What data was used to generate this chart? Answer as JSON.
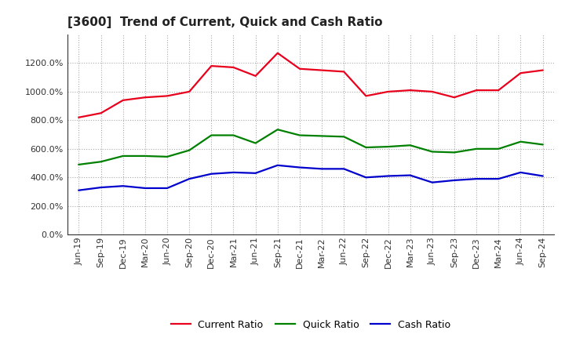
{
  "title": "[3600]  Trend of Current, Quick and Cash Ratio",
  "x_labels": [
    "Jun-19",
    "Sep-19",
    "Dec-19",
    "Mar-20",
    "Jun-20",
    "Sep-20",
    "Dec-20",
    "Mar-21",
    "Jun-21",
    "Sep-21",
    "Dec-21",
    "Mar-22",
    "Jun-22",
    "Sep-22",
    "Dec-22",
    "Mar-23",
    "Jun-23",
    "Sep-23",
    "Dec-23",
    "Mar-24",
    "Jun-24",
    "Sep-24"
  ],
  "current_ratio": [
    820,
    850,
    940,
    960,
    970,
    1000,
    1180,
    1170,
    1110,
    1270,
    1160,
    1150,
    1140,
    970,
    1000,
    1010,
    1000,
    960,
    1010,
    1010,
    1130,
    1150
  ],
  "quick_ratio": [
    490,
    510,
    550,
    550,
    545,
    590,
    695,
    695,
    640,
    735,
    695,
    690,
    685,
    610,
    615,
    625,
    580,
    575,
    600,
    600,
    650,
    630
  ],
  "cash_ratio": [
    310,
    330,
    340,
    325,
    325,
    390,
    425,
    435,
    430,
    485,
    470,
    460,
    460,
    400,
    410,
    415,
    365,
    380,
    390,
    390,
    435,
    410
  ],
  "current_color": "#e8001c",
  "quick_color": "#008000",
  "cash_color": "#0000cc",
  "ylim": [
    0,
    1400
  ],
  "yticks": [
    0,
    200,
    400,
    600,
    800,
    1000,
    1200
  ],
  "bg_color": "#ffffff",
  "plot_bg_color": "#ffffff",
  "grid_color": "#aaaaaa",
  "legend_labels": [
    "Current Ratio",
    "Quick Ratio",
    "Cash Ratio"
  ],
  "line_width": 1.6,
  "title_fontsize": 11,
  "tick_fontsize": 8,
  "legend_fontsize": 9
}
